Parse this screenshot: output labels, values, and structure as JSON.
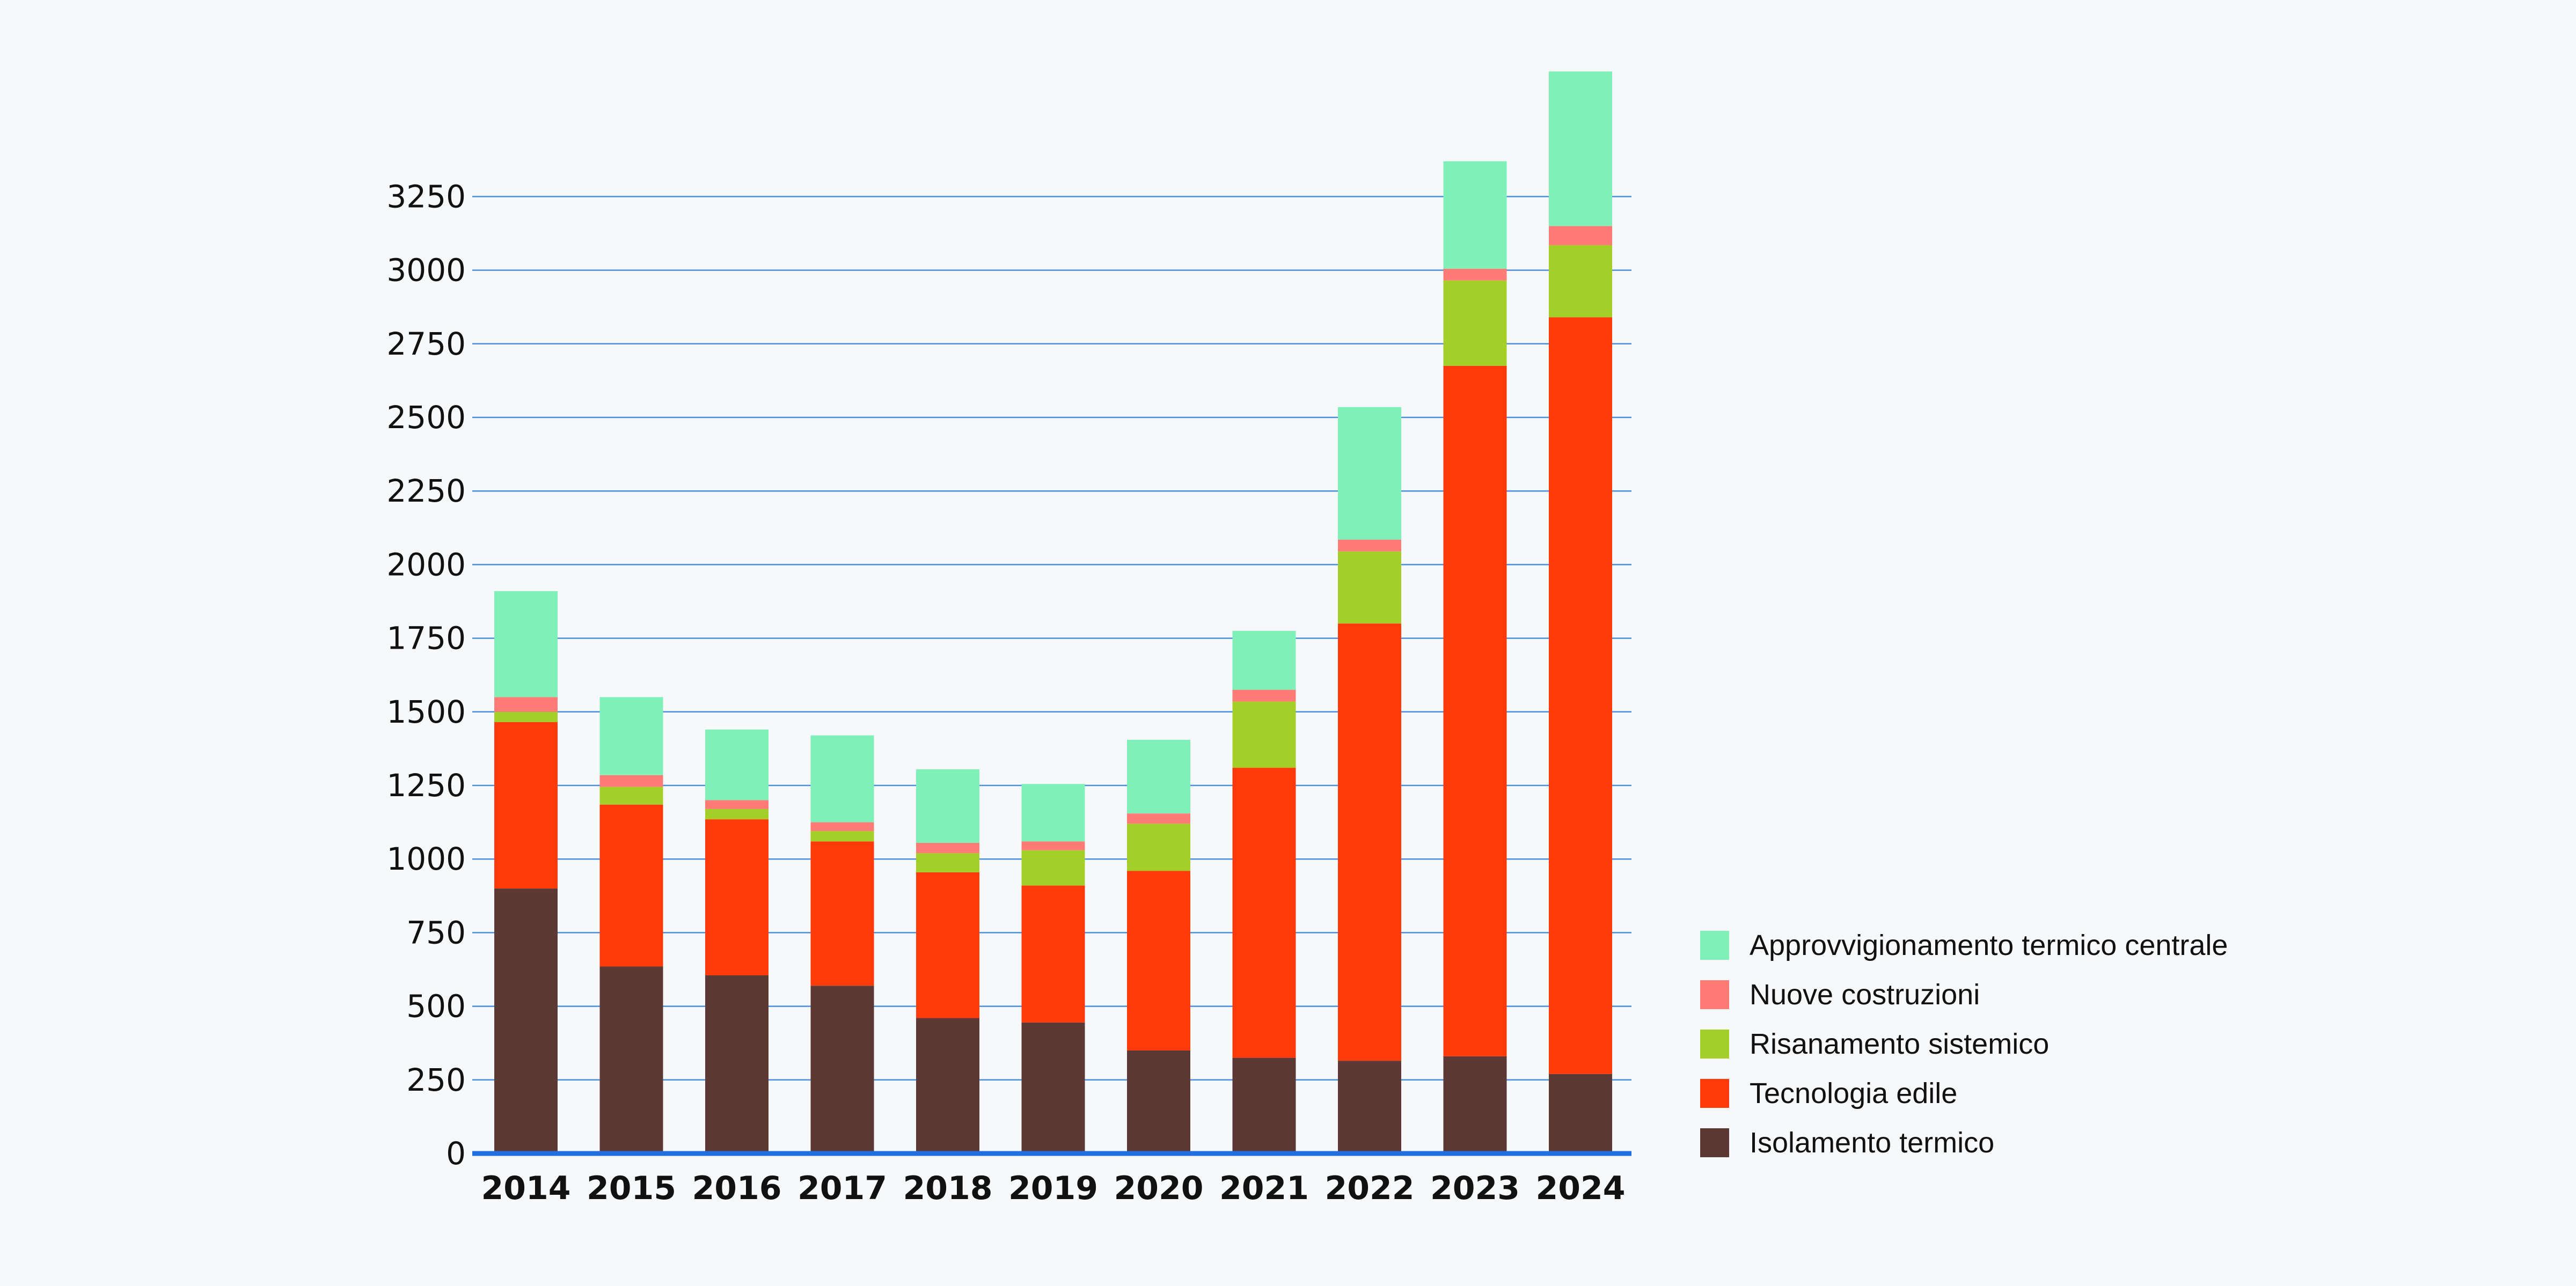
{
  "chart_data": {
    "type": "bar",
    "stacked": true,
    "categories": [
      "2014",
      "2015",
      "2016",
      "2017",
      "2018",
      "2019",
      "2020",
      "2021",
      "2022",
      "2023",
      "2024"
    ],
    "series": [
      {
        "name": "Isolamento termico",
        "color": "#5c3935",
        "values": [
          900,
          635,
          605,
          570,
          460,
          445,
          350,
          325,
          315,
          330,
          270
        ]
      },
      {
        "name": "Tecnologia edile",
        "color": "#ff3a0a",
        "values": [
          565,
          550,
          530,
          490,
          495,
          465,
          610,
          985,
          1485,
          2345,
          2570
        ]
      },
      {
        "name": "Risanamento sistemico",
        "color": "#a3cf28",
        "values": [
          35,
          60,
          35,
          35,
          65,
          120,
          160,
          225,
          245,
          290,
          245
        ]
      },
      {
        "name": "Nuove costruzioni",
        "color": "#ff7b75",
        "values": [
          50,
          40,
          30,
          30,
          35,
          30,
          35,
          40,
          40,
          40,
          65
        ]
      },
      {
        "name": "Approvvigionamento termico centrale",
        "color": "#7ef0b8",
        "values": [
          360,
          265,
          240,
          295,
          250,
          195,
          250,
          200,
          450,
          365,
          525
        ]
      }
    ],
    "yticks": [
      "0",
      "250",
      "500",
      "750",
      "1000",
      "1250",
      "1500",
      "1750",
      "2000",
      "2250",
      "2500",
      "2750",
      "3000",
      "3250"
    ],
    "ylim": [
      0,
      3700
    ],
    "grid": true,
    "gridColor": "#4a8ee0",
    "axisColor": "#1f6fe0",
    "legend": "bottom-right",
    "title": "",
    "xlabel": "",
    "ylabel": ""
  }
}
